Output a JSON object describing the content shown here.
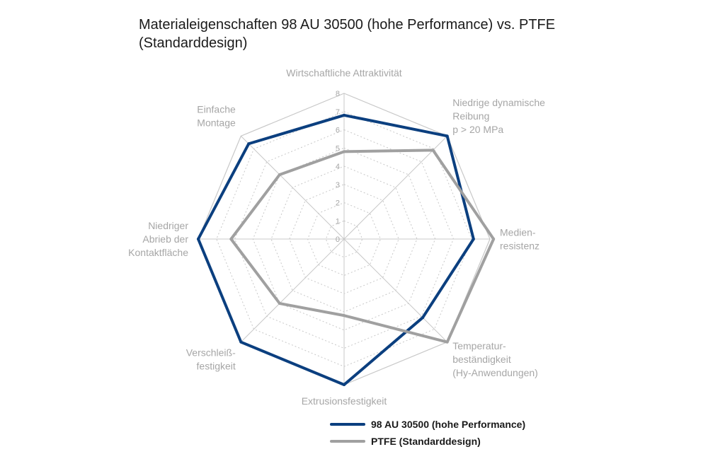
{
  "chart_data": {
    "type": "radar",
    "title": "Materialeigenschaften 98 AU 30500 (hohe Performance) vs. PTFE (Standarddesign)",
    "axes": [
      [
        "Wirtschaftliche Attraktivität"
      ],
      [
        "Niedrige dynamische",
        "Reibung",
        "p > 20 MPa"
      ],
      [
        "Medien-",
        "resistenz"
      ],
      [
        "Temperatur-",
        "beständigkeit",
        "(Hy-Anwendungen)"
      ],
      [
        "Extrusionsfestigkeit"
      ],
      [
        "Verschleiß-",
        "festigkeit"
      ],
      [
        "Niedriger",
        "Abrieb der",
        "Kontaktfläche"
      ],
      [
        "Einfache",
        "Montage"
      ]
    ],
    "rlim": [
      0,
      8
    ],
    "ticks": [
      0,
      1,
      2,
      3,
      4,
      5,
      6,
      7,
      8
    ],
    "series": [
      {
        "name": "98 AU 30500 (hohe Performance)",
        "color": "#0b3f7f",
        "values": [
          6.8,
          8.0,
          7.1,
          6.1,
          8.0,
          8.0,
          8.0,
          7.4
        ]
      },
      {
        "name": "PTFE (Standarddesign)",
        "color": "#a0a0a0",
        "values": [
          4.8,
          6.9,
          8.2,
          8.0,
          4.2,
          5.0,
          6.2,
          5.0
        ]
      }
    ],
    "grid_color": "#c8c8c8",
    "legend_position": "bottom"
  }
}
